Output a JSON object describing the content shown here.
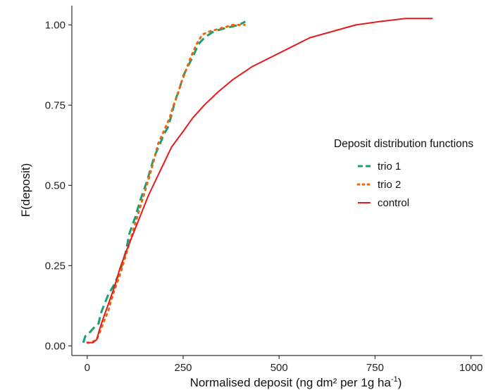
{
  "chart_data": {
    "type": "line",
    "title": "",
    "xlabel": "Normalised deposit (ng dm² per 1g ha",
    "xlabel_superscript": "-1",
    "xlabel_suffix": ")",
    "ylabel": "F(deposit)",
    "xlim": [
      -40,
      1030
    ],
    "ylim": [
      -0.03,
      1.06
    ],
    "x_ticks": [
      0,
      250,
      500,
      750,
      1000
    ],
    "x_tick_labels": [
      "0",
      "250",
      "500",
      "750",
      "1000"
    ],
    "y_ticks": [
      0,
      0.25,
      0.5,
      0.75,
      1.0
    ],
    "y_tick_labels": [
      "0.00",
      "0.25",
      "0.50",
      "0.75",
      "1.00"
    ],
    "grid": false,
    "legend": {
      "title": "Deposit distribution functions",
      "position": "right"
    },
    "series": [
      {
        "name": "trio 1",
        "color": "#1b9e77",
        "dash": "dashed",
        "points": [
          [
            -10,
            0.01
          ],
          [
            -5,
            0.03
          ],
          [
            5,
            0.04
          ],
          [
            20,
            0.06
          ],
          [
            30,
            0.07
          ],
          [
            35,
            0.1
          ],
          [
            45,
            0.13
          ],
          [
            55,
            0.16
          ],
          [
            70,
            0.19
          ],
          [
            85,
            0.23
          ],
          [
            100,
            0.29
          ],
          [
            110,
            0.35
          ],
          [
            125,
            0.4
          ],
          [
            140,
            0.46
          ],
          [
            155,
            0.51
          ],
          [
            165,
            0.55
          ],
          [
            175,
            0.59
          ],
          [
            190,
            0.63
          ],
          [
            200,
            0.66
          ],
          [
            210,
            0.68
          ],
          [
            220,
            0.72
          ],
          [
            228,
            0.76
          ],
          [
            240,
            0.8
          ],
          [
            250,
            0.84
          ],
          [
            262,
            0.87
          ],
          [
            275,
            0.9
          ],
          [
            290,
            0.94
          ],
          [
            305,
            0.96
          ],
          [
            330,
            0.98
          ],
          [
            360,
            0.99
          ],
          [
            395,
            1.0
          ],
          [
            412,
            1.01
          ]
        ]
      },
      {
        "name": "trio 2",
        "color": "#e66a0e",
        "dash": "dotted",
        "points": [
          [
            0,
            0.01
          ],
          [
            10,
            0.01
          ],
          [
            25,
            0.02
          ],
          [
            35,
            0.05
          ],
          [
            45,
            0.08
          ],
          [
            55,
            0.11
          ],
          [
            70,
            0.17
          ],
          [
            85,
            0.22
          ],
          [
            100,
            0.28
          ],
          [
            115,
            0.34
          ],
          [
            130,
            0.4
          ],
          [
            145,
            0.46
          ],
          [
            160,
            0.52
          ],
          [
            172,
            0.57
          ],
          [
            185,
            0.63
          ],
          [
            200,
            0.67
          ],
          [
            215,
            0.71
          ],
          [
            225,
            0.75
          ],
          [
            235,
            0.78
          ],
          [
            245,
            0.82
          ],
          [
            258,
            0.86
          ],
          [
            270,
            0.9
          ],
          [
            285,
            0.94
          ],
          [
            300,
            0.97
          ],
          [
            320,
            0.98
          ],
          [
            350,
            0.99
          ],
          [
            380,
            1.0
          ],
          [
            410,
            1.0
          ]
        ]
      },
      {
        "name": "control",
        "color": "#e41a1c",
        "dash": "solid",
        "points": [
          [
            0,
            0.01
          ],
          [
            15,
            0.01
          ],
          [
            25,
            0.02
          ],
          [
            32,
            0.05
          ],
          [
            40,
            0.08
          ],
          [
            55,
            0.13
          ],
          [
            70,
            0.18
          ],
          [
            85,
            0.24
          ],
          [
            100,
            0.29
          ],
          [
            120,
            0.35
          ],
          [
            140,
            0.41
          ],
          [
            160,
            0.47
          ],
          [
            180,
            0.52
          ],
          [
            200,
            0.57
          ],
          [
            220,
            0.62
          ],
          [
            245,
            0.66
          ],
          [
            275,
            0.71
          ],
          [
            305,
            0.75
          ],
          [
            340,
            0.79
          ],
          [
            380,
            0.83
          ],
          [
            430,
            0.87
          ],
          [
            480,
            0.9
          ],
          [
            530,
            0.93
          ],
          [
            580,
            0.96
          ],
          [
            640,
            0.98
          ],
          [
            700,
            1.0
          ],
          [
            760,
            1.01
          ],
          [
            830,
            1.02
          ],
          [
            880,
            1.02
          ],
          [
            900,
            1.02
          ]
        ]
      }
    ]
  }
}
